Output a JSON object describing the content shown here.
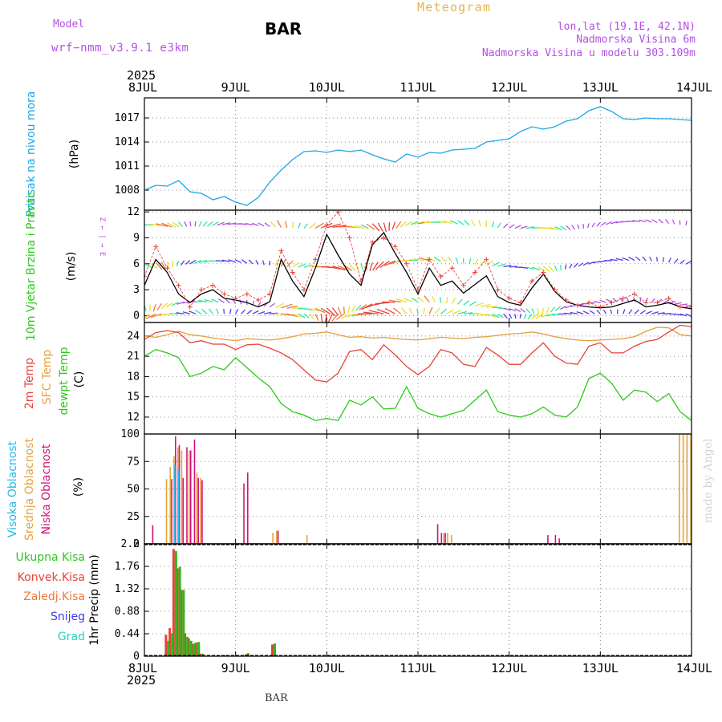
{
  "header": {
    "model_label": "Model",
    "model_name": "wrf−nmm_v3.9.1 e3km",
    "station": "BAR",
    "title": "Meteogram",
    "location": "lon,lat (19.1E, 42.1N)",
    "elevation": "Nadmorska Visina 6m",
    "model_elevation": "Nadmorska Visina u modelu 303.109m",
    "footer_station": "BAR",
    "watermark": "made by Angel",
    "year": "2025"
  },
  "colors": {
    "pressure": "#1ca6e6",
    "temp2m": "#e8423a",
    "sfc_temp": "#e2a13c",
    "dewpt": "#2bc91a",
    "high_cloud": "#2ab8e8",
    "mid_cloud": "#e6a23c",
    "low_cloud": "#d0147a",
    "total_precip": "#2bb81a",
    "conv_precip": "#e8423a",
    "frz_precip": "#f0783a",
    "snow": "#3a3ae8",
    "grad": "#2ad0c0",
    "wind_speed": "#000000",
    "gust": "#e8423a",
    "title_gold": "#e6b450",
    "purple": "#b44ee6"
  },
  "chart_data": {
    "type": "meteogram",
    "x_start": "8JUL",
    "x_end": "14JUL",
    "date_ticks": [
      "8JUL",
      "9JUL",
      "10JUL",
      "11JUL",
      "12JUL",
      "13JUL",
      "14JUL"
    ],
    "time_unit": "hours since 8JUL 00Z",
    "panels": [
      {
        "id": "pressure",
        "ylabel": "Pritisak na nivou mora",
        "unit": "(hPa)",
        "ylim": [
          1005.5,
          1019.5
        ],
        "yticks": [
          1008,
          1011,
          1014,
          1017
        ],
        "series": [
          {
            "name": "Pritisak na nivou mora",
            "color_key": "pressure",
            "t": [
              0,
              3,
              6,
              9,
              12,
              15,
              18,
              21,
              24,
              27,
              30,
              33,
              36,
              39,
              42,
              45,
              48,
              51,
              54,
              57,
              60,
              63,
              66,
              69,
              72,
              75,
              78,
              81,
              84,
              87,
              90,
              93,
              96,
              99,
              102,
              105,
              108,
              111,
              114,
              117,
              120,
              123,
              126,
              129,
              132,
              135,
              138,
              141,
              144
            ],
            "v": [
              1008,
              1008.6,
              1008.5,
              1009.2,
              1007.8,
              1007.6,
              1006.8,
              1007.2,
              1006.5,
              1006.1,
              1007.1,
              1009,
              1010.5,
              1011.8,
              1012.8,
              1012.9,
              1012.7,
              1013,
              1012.8,
              1013,
              1012.4,
              1011.9,
              1011.5,
              1012.5,
              1012.1,
              1012.7,
              1012.6,
              1013,
              1013.1,
              1013.2,
              1014,
              1014.2,
              1014.4,
              1015.3,
              1015.9,
              1015.6,
              1015.9,
              1016.6,
              1016.9,
              1017.9,
              1018.4,
              1017.8,
              1016.9,
              1016.8,
              1017,
              1016.9,
              1016.9,
              1016.8,
              1016.7
            ]
          }
        ]
      },
      {
        "id": "wind",
        "ylabel": "10m Vjetar Brzina i Pravac",
        "unit": "(m/s)",
        "compass": "Z ← | → E",
        "ylim": [
          -0.8,
          12.2
        ],
        "yticks": [
          0,
          3,
          6,
          9,
          12
        ],
        "series": [
          {
            "name": "Brzina",
            "color_key": "wind_speed",
            "t": [
              0,
              3,
              6,
              9,
              12,
              15,
              18,
              21,
              24,
              27,
              30,
              33,
              36,
              39,
              42,
              45,
              48,
              51,
              54,
              57,
              60,
              63,
              66,
              69,
              72,
              75,
              78,
              81,
              84,
              87,
              90,
              93,
              96,
              99,
              102,
              105,
              108,
              111,
              114,
              117,
              120,
              123,
              126,
              129,
              132,
              135,
              138,
              141,
              144
            ],
            "v": [
              3.5,
              6.5,
              5,
              2.5,
              1.5,
              2.5,
              3,
              2,
              1.8,
              1.5,
              1,
              1.6,
              6.5,
              4,
              2.2,
              5.5,
              9.4,
              7,
              4.8,
              3.5,
              8.2,
              9.6,
              7.2,
              5,
              2.5,
              5.5,
              3.5,
              4,
              2.6,
              3.6,
              4.6,
              2.2,
              1.5,
              1.2,
              3.2,
              4.8,
              2.8,
              1.6,
              1.2,
              1,
              0.9,
              1,
              1.4,
              1.8,
              1,
              1.2,
              1.5,
              1,
              0.8
            ]
          },
          {
            "name": "Udari",
            "color_key": "gust",
            "t": [
              0,
              3,
              6,
              9,
              12,
              15,
              18,
              21,
              24,
              27,
              30,
              33,
              36,
              39,
              42,
              45,
              48,
              51,
              54,
              57,
              60,
              63,
              66,
              69,
              72,
              75,
              78,
              81,
              84,
              87,
              90,
              93,
              96,
              99,
              102,
              105,
              108,
              111,
              114,
              117,
              120,
              123,
              126,
              129,
              132,
              135,
              138,
              141,
              144
            ],
            "v": [
              4.5,
              8,
              5.5,
              3.5,
              1,
              3,
              3.5,
              2.5,
              2,
              2.5,
              1.8,
              2.5,
              7.5,
              5,
              3,
              6.5,
              10.5,
              12,
              9,
              4,
              8.5,
              9,
              8,
              6,
              3,
              6.5,
              4.5,
              5.5,
              3.5,
              5,
              6.5,
              3,
              2,
              1.5,
              4,
              5,
              3,
              1.8,
              1.2,
              1.5,
              1,
              1.5,
              2,
              2.5,
              1.5,
              1.5,
              2,
              1,
              1
            ]
          }
        ]
      },
      {
        "id": "temperature",
        "ylabel_2m": "2m Temp",
        "ylabel_sfc": "SFC Temp",
        "ylabel_dew": "dewpt Temp",
        "unit": "(C)",
        "ylim": [
          9.5,
          26
        ],
        "yticks": [
          12,
          15,
          18,
          21,
          24
        ],
        "series": [
          {
            "name": "2m Temp",
            "color_key": "temp2m",
            "t": [
              0,
              3,
              6,
              9,
              12,
              15,
              18,
              21,
              24,
              27,
              30,
              33,
              36,
              39,
              42,
              45,
              48,
              51,
              54,
              57,
              60,
              63,
              66,
              69,
              72,
              75,
              78,
              81,
              84,
              87,
              90,
              93,
              96,
              99,
              102,
              105,
              108,
              111,
              114,
              117,
              120,
              123,
              126,
              129,
              132,
              135,
              138,
              141,
              144
            ],
            "v": [
              23.5,
              24.5,
              24.8,
              24.5,
              23,
              23.3,
              22.8,
              22.8,
              22,
              22.7,
              22.8,
              22.2,
              21.5,
              20.5,
              19,
              17.5,
              17.2,
              18.5,
              21.7,
              22,
              20.5,
              22.7,
              21.2,
              19.5,
              18.3,
              19.5,
              22,
              21.5,
              19.8,
              19.5,
              22.3,
              21.2,
              19.8,
              19.8,
              21.5,
              23,
              21,
              20,
              19.8,
              22.5,
              23,
              21.5,
              21.5,
              22.5,
              23.2,
              23.5,
              24.6,
              25.6,
              25.4
            ]
          },
          {
            "name": "SFC Temp",
            "color_key": "sfc_temp",
            "t": [
              0,
              3,
              6,
              9,
              12,
              15,
              18,
              21,
              24,
              27,
              30,
              33,
              36,
              39,
              42,
              45,
              48,
              51,
              54,
              57,
              60,
              63,
              66,
              69,
              72,
              75,
              78,
              81,
              84,
              87,
              90,
              93,
              96,
              99,
              102,
              105,
              108,
              111,
              114,
              117,
              120,
              123,
              126,
              129,
              132,
              135,
              138,
              141,
              144
            ],
            "v": [
              24,
              23.8,
              24.2,
              24.7,
              24.2,
              24,
              23.7,
              23.5,
              23.3,
              23.6,
              23.5,
              23.4,
              23.6,
              23.9,
              24.3,
              24.4,
              24.6,
              24.2,
              23.8,
              23.9,
              23.7,
              23.8,
              23.6,
              23.5,
              23.4,
              23.6,
              23.8,
              23.7,
              23.6,
              23.8,
              23.9,
              24.1,
              24.3,
              24.4,
              24.6,
              24.3,
              23.9,
              23.6,
              23.4,
              23.3,
              23.4,
              23.5,
              23.6,
              23.9,
              24.7,
              25.3,
              25.2,
              24.2,
              24
            ]
          },
          {
            "name": "dewpt Temp",
            "color_key": "dewpt",
            "t": [
              0,
              3,
              6,
              9,
              12,
              15,
              18,
              21,
              24,
              27,
              30,
              33,
              36,
              39,
              42,
              45,
              48,
              51,
              54,
              57,
              60,
              63,
              66,
              69,
              72,
              75,
              78,
              81,
              84,
              87,
              90,
              93,
              96,
              99,
              102,
              105,
              108,
              111,
              114,
              117,
              120,
              123,
              126,
              129,
              132,
              135,
              138,
              141,
              144
            ],
            "v": [
              21,
              22,
              21.5,
              20.8,
              18,
              18.5,
              19.5,
              19,
              20.8,
              19.3,
              17.8,
              16.5,
              14,
              12.8,
              12.3,
              11.5,
              11.8,
              11.5,
              14.5,
              13.8,
              15,
              13.2,
              13.3,
              16.5,
              13.3,
              12.5,
              12,
              12.5,
              13,
              14.5,
              16,
              12.8,
              12.3,
              12,
              12.5,
              13.5,
              12.3,
              12,
              13.5,
              17.7,
              18.5,
              17,
              14.5,
              16,
              15.7,
              14.3,
              15.5,
              12.8,
              11.5
            ]
          }
        ]
      },
      {
        "id": "cloud",
        "ylabel_high": "Visoka Oblacnost",
        "ylabel_mid": "Srednja Oblacnost",
        "ylabel_low": "Niska Oblacnost",
        "unit": "(%)",
        "ylim": [
          0,
          100
        ],
        "yticks": [
          0,
          25,
          50,
          75,
          100
        ],
        "bars": [
          {
            "name": "Niska Oblacnost",
            "color_key": "low_cloud",
            "t": [
              2,
              7,
              8,
              9,
              10,
              11,
              12,
              13,
              14,
              15,
              26,
              27,
              35,
              77,
              78,
              79,
              106,
              108,
              109
            ],
            "v": [
              17,
              59,
              98,
              90,
              60,
              88,
              85,
              95,
              60,
              58,
              55,
              65,
              12,
              18,
              10,
              10,
              8,
              8,
              5
            ]
          },
          {
            "name": "Srednja Oblacnost",
            "color_key": "mid_cloud",
            "t": [
              6,
              7,
              8,
              9,
              10,
              12,
              14,
              15,
              34,
              35,
              43,
              79,
              80,
              81,
              141,
              142,
              143,
              144
            ],
            "v": [
              59,
              70,
              80,
              88,
              85,
              85,
              65,
              60,
              10,
              12,
              8,
              10,
              10,
              8,
              100,
              100,
              100,
              100
            ]
          },
          {
            "name": "Visoka Oblacnost",
            "color_key": "high_cloud",
            "t": [
              8,
              9
            ],
            "v": [
              72,
              68
            ]
          }
        ]
      },
      {
        "id": "precip",
        "unit": "1hr Precip (mm)",
        "legend": [
          "Ukupna Kisa",
          "Konvek.Kisa",
          "Zaledj.Kisa",
          "Snijeg",
          "Grad"
        ],
        "ylim": [
          0,
          2.2
        ],
        "yticks": [
          0,
          0.44,
          0.88,
          1.32,
          1.76,
          2.2
        ],
        "bars": [
          {
            "name": "Konvek.Kisa",
            "color_key": "conv_precip",
            "t": [
              6,
              7,
              8,
              9,
              10,
              11,
              12,
              13,
              14,
              15,
              21,
              27,
              34
            ],
            "v": [
              0.42,
              0.55,
              2.1,
              1.72,
              1.3,
              0.45,
              0.35,
              0.24,
              0.27,
              0.05,
              0.02,
              0.04,
              0.23
            ]
          },
          {
            "name": "Ukupna Kisa",
            "color_key": "total_precip",
            "t": [
              6,
              7,
              8,
              9,
              10,
              11,
              12,
              13,
              14,
              15,
              21,
              27,
              34
            ],
            "v": [
              0.3,
              0.45,
              2.06,
              1.75,
              1.3,
              0.38,
              0.3,
              0.26,
              0.28,
              0.05,
              0.02,
              0.06,
              0.25
            ]
          }
        ]
      }
    ]
  }
}
